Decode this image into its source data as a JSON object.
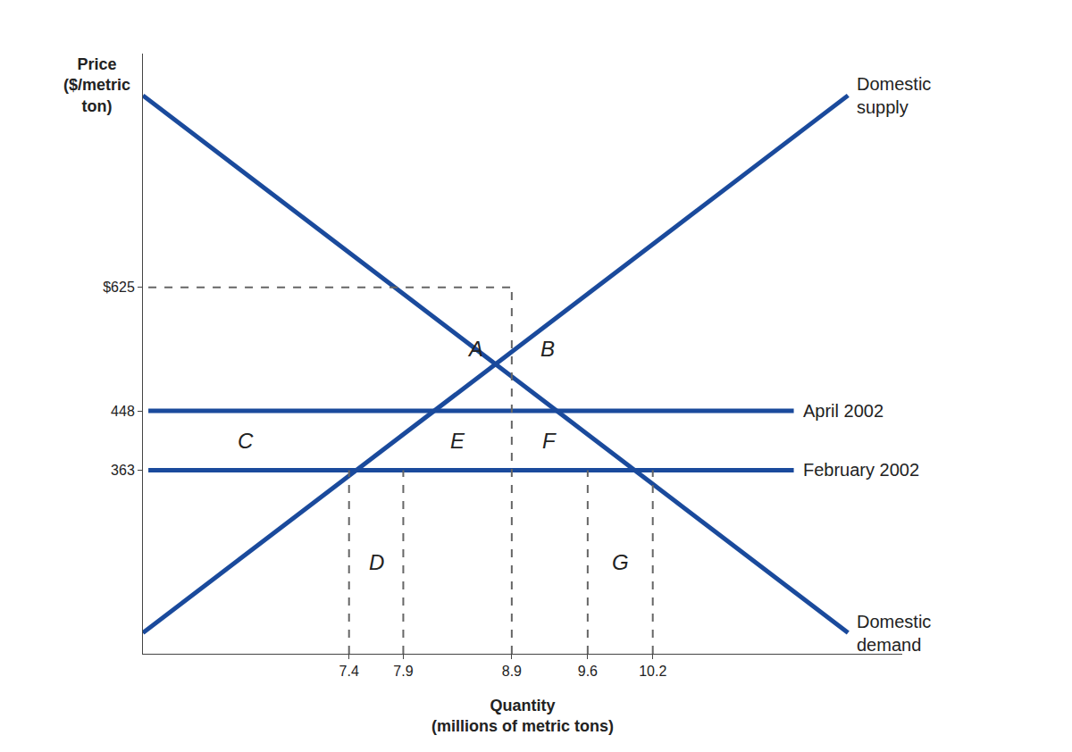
{
  "chart_data": {
    "type": "line",
    "xlabel": "Quantity\n(millions of metric tons)",
    "ylabel": "Price\n($/metric\nton)",
    "xlim": [
      5.5,
      12.5
    ],
    "ylim": [
      100,
      960
    ],
    "xticks": [
      7.4,
      7.9,
      8.9,
      9.6,
      10.2
    ],
    "yticks": [
      363,
      448,
      {
        "value": 625,
        "label": "$625"
      }
    ],
    "grid": false,
    "series": [
      {
        "name": "Domestic\nsupply",
        "color": "#1a4a9c",
        "line_style": "solid",
        "x": [
          5.5,
          12.0
        ],
        "values": [
          130,
          900
        ]
      },
      {
        "name": "Domestic\ndemand",
        "color": "#1a4a9c",
        "line_style": "solid",
        "x": [
          5.5,
          12.0
        ],
        "values": [
          900,
          130
        ]
      },
      {
        "name": "April 2002",
        "color": "#1a4a9c",
        "line_style": "solid",
        "x": [
          5.55,
          11.5
        ],
        "values": [
          448,
          448
        ]
      },
      {
        "name": "February 2002",
        "color": "#1a4a9c",
        "line_style": "solid",
        "x": [
          5.55,
          11.5
        ],
        "values": [
          363,
          363
        ]
      },
      {
        "color": "#666666",
        "line_style": "dashed",
        "x": [
          5.55,
          8.9
        ],
        "values": [
          625,
          625
        ]
      },
      {
        "color": "#666666",
        "line_style": "dashed",
        "x": [
          7.4,
          7.4
        ],
        "values": [
          100,
          363
        ]
      },
      {
        "color": "#666666",
        "line_style": "dashed",
        "x": [
          7.9,
          7.9
        ],
        "values": [
          100,
          363
        ]
      },
      {
        "color": "#666666",
        "line_style": "dashed",
        "x": [
          8.9,
          8.9
        ],
        "values": [
          100,
          625
        ]
      },
      {
        "color": "#666666",
        "line_style": "dashed",
        "x": [
          9.6,
          9.6
        ],
        "values": [
          100,
          363
        ]
      },
      {
        "color": "#666666",
        "line_style": "dashed",
        "x": [
          10.2,
          10.2
        ],
        "values": [
          100,
          363
        ]
      }
    ],
    "annotations": [
      "A",
      "B",
      "C",
      "D",
      "E",
      "F",
      "G"
    ]
  }
}
